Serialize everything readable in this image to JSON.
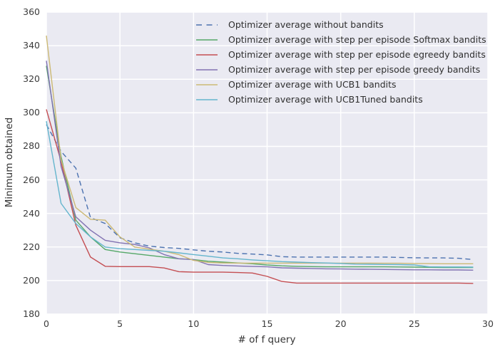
{
  "chart_data": {
    "type": "line",
    "title": "",
    "xlabel": "# of f query",
    "ylabel": "Minimum obtained",
    "xlim": [
      0,
      30
    ],
    "ylim": [
      180,
      360
    ],
    "xticks": [
      0,
      5,
      10,
      15,
      20,
      25,
      30
    ],
    "yticks": [
      180,
      200,
      220,
      240,
      260,
      280,
      300,
      320,
      340,
      360
    ],
    "grid": true,
    "plot_background": "#eaeaf2",
    "gridline_color": "#ffffff",
    "legend_position": "upper center, inside axes, no frame",
    "x": [
      0,
      1,
      2,
      3,
      4,
      5,
      6,
      7,
      8,
      9,
      10,
      11,
      12,
      13,
      14,
      15,
      16,
      17,
      18,
      19,
      20,
      21,
      22,
      23,
      24,
      25,
      26,
      27,
      28,
      29
    ],
    "series": [
      {
        "name": "Optimizer average without bandits",
        "color": "#4c72b0",
        "style": "dashed",
        "values": [
          293,
          277,
          267,
          237.5,
          234,
          225.5,
          222.5,
          220.5,
          219.7,
          219.2,
          218.3,
          217.5,
          217,
          216.2,
          215.8,
          215.3,
          214.2,
          214,
          214,
          214,
          214,
          214,
          214,
          214,
          213.8,
          213.6,
          213.5,
          213.5,
          213.3,
          212.5
        ]
      },
      {
        "name": "Optimizer average with step per episode Softmax bandits",
        "color": "#55a868",
        "style": "solid",
        "values": [
          328,
          274,
          236,
          226,
          218.5,
          217,
          216,
          215,
          214,
          213,
          212.5,
          211.5,
          211,
          210.5,
          210,
          209.3,
          208.8,
          208.5,
          208.3,
          208.2,
          208.2,
          208.2,
          208.2,
          208.2,
          208.1,
          208,
          207.9,
          207.8,
          207.8,
          207.8
        ]
      },
      {
        "name": "Optimizer average with step per episode egreedy bandits",
        "color": "#c44e52",
        "style": "solid",
        "values": [
          302,
          271,
          233,
          214,
          208.5,
          208.3,
          208.3,
          208.3,
          207.5,
          205.3,
          205,
          205,
          205,
          204.8,
          204.5,
          202.5,
          199.5,
          198.5,
          198.5,
          198.5,
          198.5,
          198.5,
          198.5,
          198.5,
          198.5,
          198.5,
          198.5,
          198.5,
          198.5,
          198.3
        ]
      },
      {
        "name": "Optimizer average with step per episode greedy bandits",
        "color": "#8172b2",
        "style": "solid",
        "values": [
          331,
          268,
          238,
          230,
          224,
          222.5,
          221.5,
          219.5,
          215.5,
          213,
          212.5,
          209.5,
          209,
          208.7,
          208.4,
          208.2,
          207.6,
          207.4,
          207.2,
          207,
          206.9,
          206.8,
          206.7,
          206.6,
          206.5,
          206.4,
          206.4,
          206.3,
          206.3,
          206.2
        ]
      },
      {
        "name": "Optimizer average with UCB1 bandits",
        "color": "#ccb974",
        "style": "solid",
        "values": [
          346,
          272,
          243.5,
          236.5,
          236,
          226,
          220,
          218.7,
          217.5,
          215.5,
          212,
          210.8,
          210.5,
          210.4,
          210.4,
          210.4,
          210.4,
          210.4,
          210.4,
          210.4,
          210.4,
          210.4,
          210.4,
          210.3,
          210.3,
          210.2,
          210.1,
          210,
          210,
          210
        ]
      },
      {
        "name": "Optimizer average with UCB1Tuned bandits",
        "color": "#64b5cd",
        "style": "solid",
        "values": [
          295,
          246,
          234,
          226,
          220,
          219,
          218.5,
          218,
          217.5,
          216.5,
          215.5,
          214.5,
          213.5,
          213,
          212.3,
          211.8,
          211.3,
          211,
          210.7,
          210.5,
          210.2,
          209.8,
          209.7,
          209.6,
          209.5,
          209.3,
          208.2,
          208.1,
          208.1,
          208
        ]
      }
    ]
  }
}
